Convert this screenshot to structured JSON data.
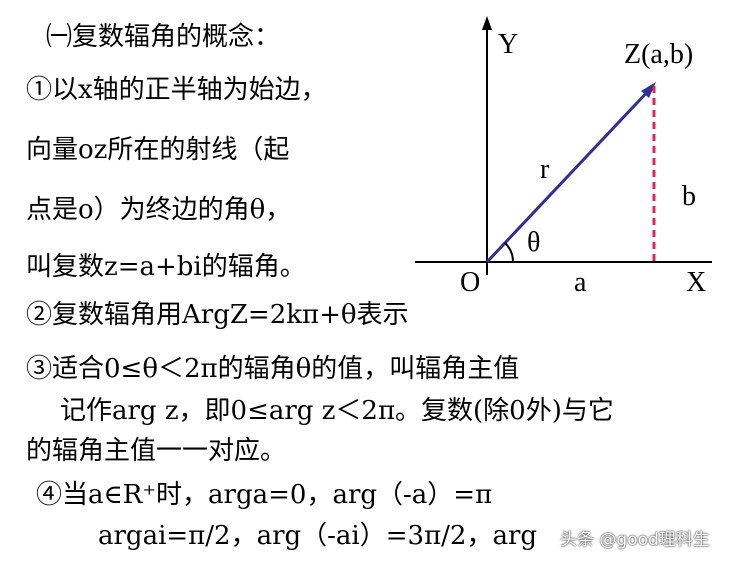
{
  "lines": [
    "㈠复数辐角的概念：",
    "①以x轴的正半轴为始边，",
    "向量oz所在的射线（起",
    "点是o）为终边的角θ，",
    "叫复数z=a+bi的辐角。",
    "②复数辐角用ArgZ=2kπ+θ表示",
    "③适合0≤θ＜2π的辐角θ的值，叫辐角主值",
    "记作arg z，即0≤arg z＜2π。复数(除0外)与它",
    "的辐角主值一一对应。",
    "④当a∈R⁺时，arga=0，arg（-a）=π",
    "argai=π/2，arg（-ai）=3π/2，arg"
  ],
  "diagram": {
    "y_axis": "Y",
    "x_axis": "X",
    "origin": "O",
    "point": "Z(a,b)",
    "vector": "r",
    "angle": "θ",
    "x_len": "a",
    "y_len": "b",
    "colors": {
      "vector": "#2e3192",
      "dashed": "#e0245e",
      "axes": "#000000"
    }
  },
  "watermark": "头条 @good理科生"
}
